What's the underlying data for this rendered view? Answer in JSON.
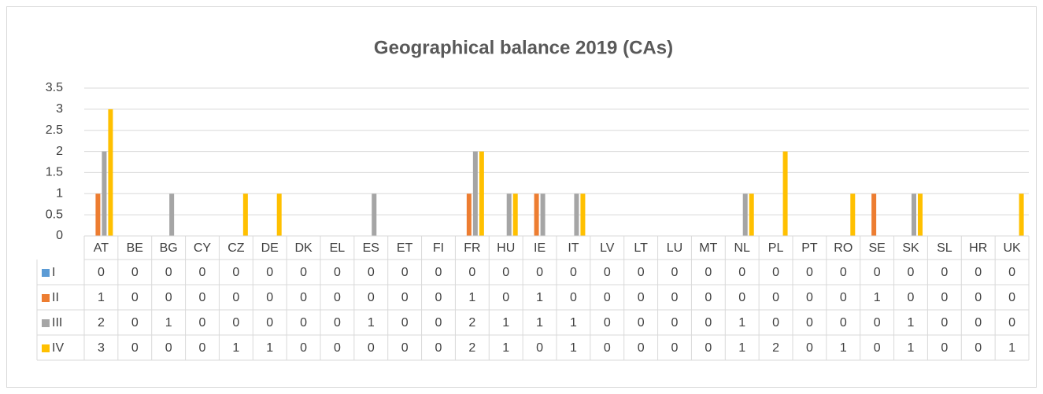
{
  "chart_data": {
    "type": "bar",
    "title": "Geographical balance 2019 (CAs)",
    "categories": [
      "AT",
      "BE",
      "BG",
      "CY",
      "CZ",
      "DE",
      "DK",
      "EL",
      "ES",
      "ET",
      "FI",
      "FR",
      "HU",
      "IE",
      "IT",
      "LV",
      "LT",
      "LU",
      "MT",
      "NL",
      "PL",
      "PT",
      "RO",
      "SE",
      "SK",
      "SL",
      "HR",
      "UK"
    ],
    "series": [
      {
        "name": "I",
        "color": "#5b9bd5",
        "values": [
          0,
          0,
          0,
          0,
          0,
          0,
          0,
          0,
          0,
          0,
          0,
          0,
          0,
          0,
          0,
          0,
          0,
          0,
          0,
          0,
          0,
          0,
          0,
          0,
          0,
          0,
          0,
          0
        ]
      },
      {
        "name": "II",
        "color": "#ed7d31",
        "values": [
          1,
          0,
          0,
          0,
          0,
          0,
          0,
          0,
          0,
          0,
          0,
          1,
          0,
          1,
          0,
          0,
          0,
          0,
          0,
          0,
          0,
          0,
          0,
          1,
          0,
          0,
          0,
          0
        ]
      },
      {
        "name": "III",
        "color": "#a5a5a5",
        "values": [
          2,
          0,
          1,
          0,
          0,
          0,
          0,
          0,
          1,
          0,
          0,
          2,
          1,
          1,
          1,
          0,
          0,
          0,
          0,
          1,
          0,
          0,
          0,
          0,
          1,
          0,
          0,
          0
        ]
      },
      {
        "name": "IV",
        "color": "#ffc000",
        "values": [
          3,
          0,
          0,
          0,
          1,
          1,
          0,
          0,
          0,
          0,
          0,
          2,
          1,
          0,
          1,
          0,
          0,
          0,
          0,
          1,
          2,
          0,
          1,
          0,
          1,
          0,
          0,
          1
        ]
      }
    ],
    "ylim": [
      0,
      3.5
    ],
    "yticks": [
      0,
      0.5,
      1,
      1.5,
      2,
      2.5,
      3,
      3.5
    ],
    "grid": true,
    "data_table": true
  }
}
